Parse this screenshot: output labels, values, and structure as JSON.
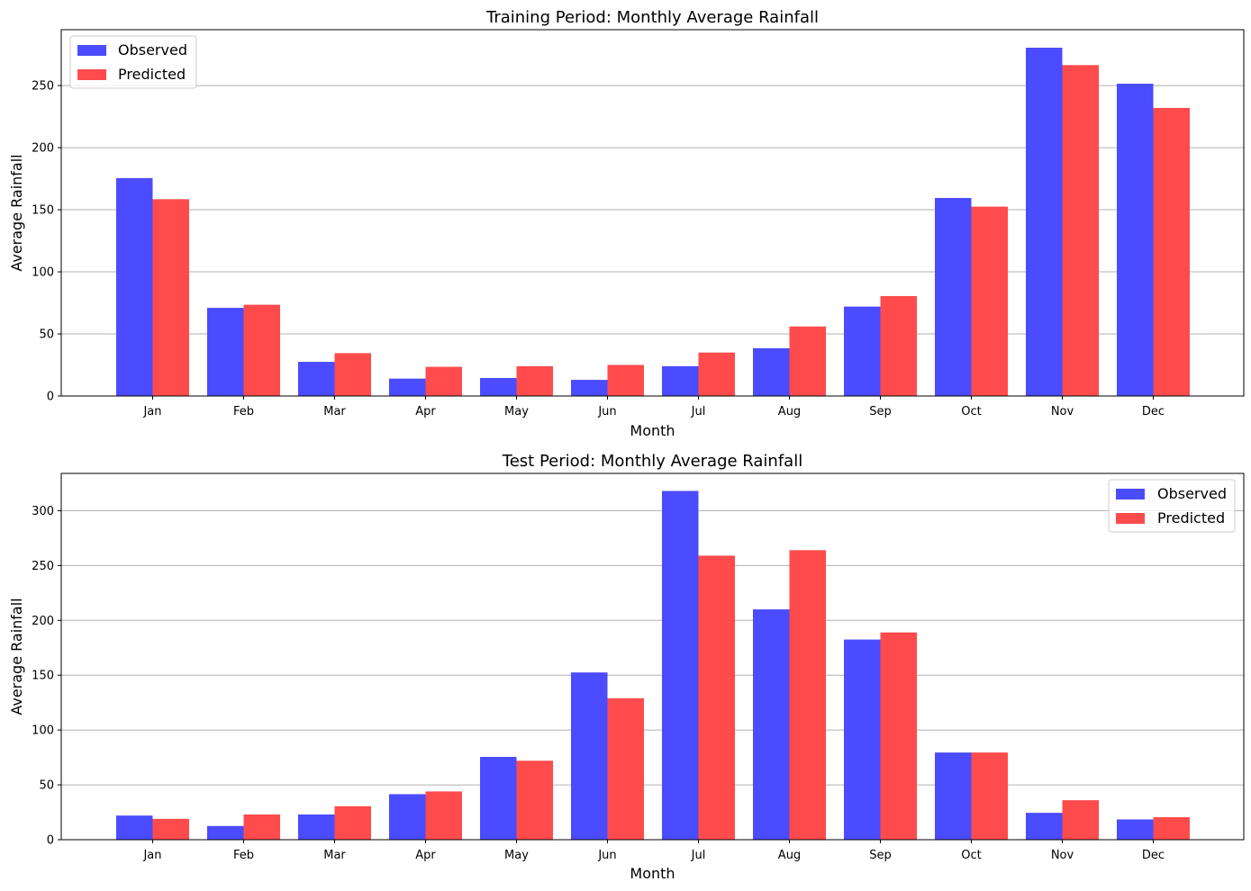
{
  "chart_data": [
    {
      "type": "bar",
      "title": "Training Period: Monthly Average Rainfall",
      "xlabel": "Month",
      "ylabel": "Average Rainfall",
      "categories": [
        "Jan",
        "Feb",
        "Mar",
        "Apr",
        "May",
        "Jun",
        "Jul",
        "Aug",
        "Sep",
        "Oct",
        "Nov",
        "Dec"
      ],
      "series": [
        {
          "name": "Observed",
          "color": "#4b4bff",
          "values": [
            175.5,
            71,
            27.5,
            14,
            14.5,
            13,
            24,
            38.5,
            72,
            159.5,
            280.5,
            251.5
          ]
        },
        {
          "name": "Predicted",
          "color": "#ff4b4b",
          "values": [
            158.5,
            73.5,
            34.5,
            23.5,
            24,
            25,
            35,
            56,
            80.5,
            152.5,
            266.5,
            232
          ]
        }
      ],
      "ylim": [
        0,
        295
      ],
      "yticks": [
        0,
        50,
        100,
        150,
        200,
        250
      ],
      "grid": "y",
      "legend": "top-left"
    },
    {
      "type": "bar",
      "title": "Test Period: Monthly Average Rainfall",
      "xlabel": "Month",
      "ylabel": "Average Rainfall",
      "categories": [
        "Jan",
        "Feb",
        "Mar",
        "Apr",
        "May",
        "Jun",
        "Jul",
        "Aug",
        "Sep",
        "Oct",
        "Nov",
        "Dec"
      ],
      "series": [
        {
          "name": "Observed",
          "color": "#4b4bff",
          "values": [
            22,
            12.5,
            23,
            41.5,
            75.5,
            152.5,
            318,
            210,
            182.5,
            79.5,
            24.5,
            18.5
          ]
        },
        {
          "name": "Predicted",
          "color": "#ff4b4b",
          "values": [
            19,
            23,
            30.5,
            44,
            72,
            129,
            259,
            264,
            189,
            79.5,
            36,
            20.5
          ]
        }
      ],
      "ylim": [
        0,
        334
      ],
      "yticks": [
        0,
        50,
        100,
        150,
        200,
        250,
        300
      ],
      "grid": "y",
      "legend": "top-right"
    }
  ]
}
